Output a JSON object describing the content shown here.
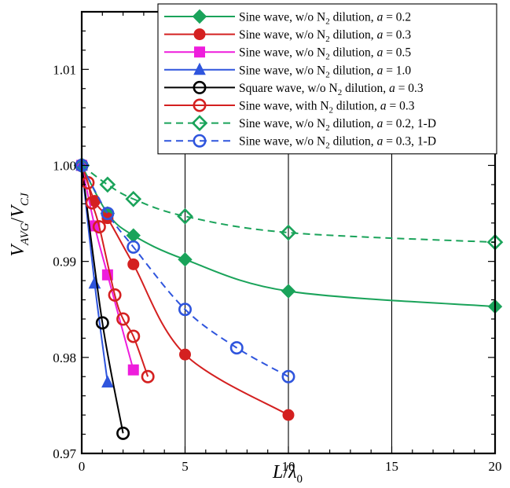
{
  "chart_data": {
    "type": "line",
    "xlabel": {
      "main": "L",
      "sep": "/",
      "sym": "λ",
      "sub": "0"
    },
    "ylabel": {
      "v1": "V",
      "s1": "AVG",
      "sep": "/",
      "v2": "V",
      "s2": "CJ"
    },
    "xlim": [
      0,
      20
    ],
    "ylim": [
      0.97,
      1.016
    ],
    "xticks": [
      "0",
      "5",
      "10",
      "15",
      "20"
    ],
    "yticks": [
      "0.97",
      "0.98",
      "0.99",
      "1.00",
      "1.01"
    ],
    "legend_position": "top-right",
    "series": [
      {
        "name": "Sine wave, w/o N2 dilution, a = 0.2",
        "label": {
          "pre": "Sine wave, w/o N",
          "sub": "2",
          "mid": " dilution, ",
          "a": "a",
          "post": " = 0.2"
        },
        "color": "#1aa35a",
        "marker": "diamond",
        "filled": true,
        "dash": false,
        "x": [
          0,
          1.25,
          2.5,
          5,
          10,
          20
        ],
        "y": [
          1.0,
          0.995,
          0.9927,
          0.9902,
          0.9869,
          0.9853
        ]
      },
      {
        "name": "Sine wave, w/o N2 dilution, a = 0.3",
        "label": {
          "pre": "Sine wave, w/o N",
          "sub": "2",
          "mid": " dilution, ",
          "a": "a",
          "post": " =  0.3"
        },
        "color": "#d42020",
        "marker": "circle",
        "filled": true,
        "dash": false,
        "x": [
          0,
          0.625,
          1.25,
          2.5,
          5,
          10
        ],
        "y": [
          1.0,
          0.9963,
          0.9945,
          0.9897,
          0.9803,
          0.974
        ]
      },
      {
        "name": "Sine wave, w/o N2 dilution, a = 0.5",
        "label": {
          "pre": "Sine wave, w/o N",
          "sub": "2",
          "mid": " dilution, ",
          "a": "a",
          "post": " = 0.5"
        },
        "color": "#ee1ddc",
        "marker": "square",
        "filled": true,
        "dash": false,
        "x": [
          0,
          0.625,
          1.25,
          2.5
        ],
        "y": [
          1.0,
          0.9937,
          0.9886,
          0.9787
        ]
      },
      {
        "name": "Sine wave, w/o N2 dilution, a = 1.0",
        "label": {
          "pre": "Sine wave, w/o N",
          "sub": "2",
          "mid": " dilution, ",
          "a": "a",
          "post": " = 1.0"
        },
        "color": "#2f55dd",
        "marker": "triangle",
        "filled": true,
        "dash": false,
        "x": [
          0,
          0.625,
          1.25
        ],
        "y": [
          1.0,
          0.9877,
          0.9774
        ]
      },
      {
        "name": "Square wave, w/o N2 dilution, a = 0.3",
        "label": {
          "pre": "Square wave, w/o N",
          "sub": "2",
          "mid": " dilution, ",
          "a": "a",
          "post": " = 0.3"
        },
        "color": "#000000",
        "marker": "circle",
        "filled": false,
        "dash": false,
        "x": [
          0,
          1,
          2
        ],
        "y": [
          1.0,
          0.9836,
          0.9721
        ]
      },
      {
        "name": "Sine wave, with N2 dilution, a = 0.3",
        "label": {
          "pre": "Sine wave, with N",
          "sub": "2",
          "mid": " dilution, ",
          "a": "a",
          "post": " = 0.3"
        },
        "color": "#d42020",
        "marker": "circle",
        "filled": false,
        "dash": false,
        "x": [
          0,
          0.3,
          0.5,
          0.85,
          1.6,
          2.0,
          2.5,
          3.2
        ],
        "y": [
          1.0,
          0.9982,
          0.9961,
          0.9936,
          0.9865,
          0.984,
          0.9822,
          0.978
        ]
      },
      {
        "name": "Sine wave, w/o N2 dilution, a = 0.2, 1-D",
        "label": {
          "pre": "Sine wave, w/o N",
          "sub": "2",
          "mid": " dilution, ",
          "a": "a",
          "post": " = 0.2, 1-D"
        },
        "color": "#1aa35a",
        "marker": "diamond",
        "filled": false,
        "dash": true,
        "x": [
          0,
          1.25,
          2.5,
          5,
          10,
          20
        ],
        "y": [
          1.0,
          0.998,
          0.9965,
          0.9947,
          0.993,
          0.992
        ]
      },
      {
        "name": "Sine wave, w/o N2 dilution, a = 0.3, 1-D",
        "label": {
          "pre": "Sine wave, w/o N",
          "sub": "2",
          "mid": " dilution, ",
          "a": "a",
          "post": " = 0.3, 1-D"
        },
        "color": "#2f55dd",
        "marker": "circle",
        "filled": false,
        "dash": true,
        "x": [
          0,
          1.25,
          2.5,
          5,
          7.5,
          10
        ],
        "y": [
          1.0,
          0.995,
          0.9915,
          0.985,
          0.981,
          0.978
        ]
      }
    ]
  }
}
